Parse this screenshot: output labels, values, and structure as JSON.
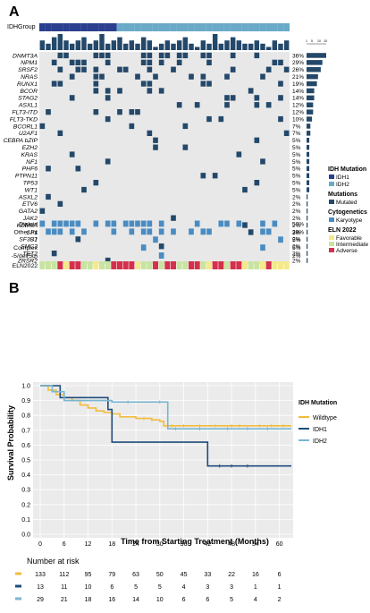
{
  "panelA": {
    "label": "A",
    "group_label": "IDHGroup",
    "bar_scale_ticks": [
      "1",
      "5",
      "10",
      "15"
    ],
    "genes": [
      {
        "name": "DNMT3A",
        "pct": "36%"
      },
      {
        "name": "NPM1",
        "pct": "29%"
      },
      {
        "name": "SRSF2",
        "pct": "26%"
      },
      {
        "name": "NRAS",
        "pct": "21%"
      },
      {
        "name": "RUNX1",
        "pct": "19%"
      },
      {
        "name": "BCOR",
        "pct": "14%"
      },
      {
        "name": "STAG2",
        "pct": "14%"
      },
      {
        "name": "ASXL1",
        "pct": "12%"
      },
      {
        "name": "FLT3-ITD",
        "pct": "12%"
      },
      {
        "name": "FLT3-TKD",
        "pct": "10%"
      },
      {
        "name": "BCORL1",
        "pct": "7%"
      },
      {
        "name": "U2AF1",
        "pct": "7%"
      },
      {
        "name": "CEBPA bZIP",
        "pct": "5%"
      },
      {
        "name": "EZH2",
        "pct": "5%"
      },
      {
        "name": "KRAS",
        "pct": "5%"
      },
      {
        "name": "NF1",
        "pct": "5%"
      },
      {
        "name": "PHF6",
        "pct": "5%"
      },
      {
        "name": "PTPN11",
        "pct": "5%"
      },
      {
        "name": "TP53",
        "pct": "5%"
      },
      {
        "name": "WT1",
        "pct": "5%"
      },
      {
        "name": "ASXL2",
        "pct": "2%"
      },
      {
        "name": "ETV6",
        "pct": "2%"
      },
      {
        "name": "GATA2",
        "pct": "2%"
      },
      {
        "name": "JAK2",
        "pct": "2%"
      },
      {
        "name": "KDM6A",
        "pct": "2%"
      },
      {
        "name": "SF1",
        "pct": "2%"
      },
      {
        "name": "SF3B1",
        "pct": "2%"
      },
      {
        "name": "SMC3",
        "pct": "2%"
      },
      {
        "name": "TET2",
        "pct": "2%"
      },
      {
        "name": "ZRSR2",
        "pct": "2%"
      }
    ],
    "cyto": [
      {
        "name": "Diploid",
        "pct": "50%"
      },
      {
        "name": "Other Int",
        "pct": "38%"
      },
      {
        "name": "-7",
        "pct": "5%"
      },
      {
        "name": "Complex",
        "pct": "5%"
      },
      {
        "name": "-5/del(5q)",
        "pct": "2%"
      }
    ],
    "eln_label": "ELN2022",
    "legend": {
      "idh_title": "IDH Mutation",
      "idh1": "IDH1",
      "idh2": "IDH2",
      "mut_title": "Mutations",
      "mut": "Mutated",
      "cyto_title": "Cytogenetics",
      "cyto": "Karyotype",
      "eln_title": "ELN 2022",
      "fav": "Favorable",
      "inter": "Intermediate",
      "adv": "Adverse"
    },
    "colors": {
      "idh1": "#2b3f8f",
      "idh2": "#6aaac8",
      "mut": "#24486a",
      "cyto": "#4a8cc2",
      "bg": "#e8e8e8",
      "fav": "#f4e98c",
      "inter": "#c8e4a0",
      "adv": "#d4304e"
    }
  },
  "panelB": {
    "label": "B",
    "legend_title": "IDH Mutation",
    "risk_title": "Number at risk",
    "chart_data": {
      "type": "line",
      "title": "",
      "xlabel": "Time from Starting Treatment (Months)",
      "ylabel": "Survival Probability",
      "xlim": [
        0,
        63
      ],
      "ylim": [
        0,
        1.0
      ],
      "xticks": [
        "0",
        "6",
        "12",
        "18",
        "24",
        "30",
        "36",
        "42",
        "48",
        "54",
        "60"
      ],
      "yticks": [
        "0.0",
        "0.1",
        "0.2",
        "0.3",
        "0.4",
        "0.5",
        "0.6",
        "0.7",
        "0.8",
        "0.9",
        "1.0"
      ],
      "series": [
        {
          "name": "Wildtype",
          "color": "#f2bc3c",
          "x": [
            0,
            2,
            4,
            6,
            8,
            10,
            12,
            14,
            16,
            18,
            20,
            24,
            28,
            30,
            31,
            36,
            63
          ],
          "y": [
            1.0,
            0.97,
            0.94,
            0.92,
            0.9,
            0.87,
            0.85,
            0.83,
            0.82,
            0.81,
            0.79,
            0.78,
            0.77,
            0.76,
            0.73,
            0.73,
            0.73
          ]
        },
        {
          "name": "IDH1",
          "color": "#1f4c7c",
          "x": [
            0,
            4,
            5,
            17,
            18,
            41,
            42,
            63
          ],
          "y": [
            1.0,
            1.0,
            0.92,
            0.84,
            0.62,
            0.62,
            0.46,
            0.46
          ]
        },
        {
          "name": "IDH2",
          "color": "#7ab6d2",
          "x": [
            0,
            2,
            3,
            6,
            18,
            31,
            32,
            63
          ],
          "y": [
            1.0,
            1.0,
            0.96,
            0.9,
            0.89,
            0.89,
            0.71,
            0.71
          ]
        }
      ],
      "risk_table": {
        "times": [
          0,
          6,
          12,
          18,
          24,
          30,
          36,
          42,
          48,
          54,
          60
        ],
        "rows": [
          {
            "color": "#f2bc3c",
            "values": [
              "133",
              "112",
              "95",
              "79",
              "63",
              "50",
              "45",
              "33",
              "22",
              "16",
              "6"
            ]
          },
          {
            "color": "#1f4c7c",
            "values": [
              "13",
              "11",
              "10",
              "6",
              "5",
              "5",
              "4",
              "3",
              "3",
              "1",
              "1"
            ]
          },
          {
            "color": "#7ab6d2",
            "values": [
              "29",
              "21",
              "18",
              "16",
              "14",
              "10",
              "6",
              "6",
              "5",
              "4",
              "2"
            ]
          }
        ]
      }
    }
  }
}
